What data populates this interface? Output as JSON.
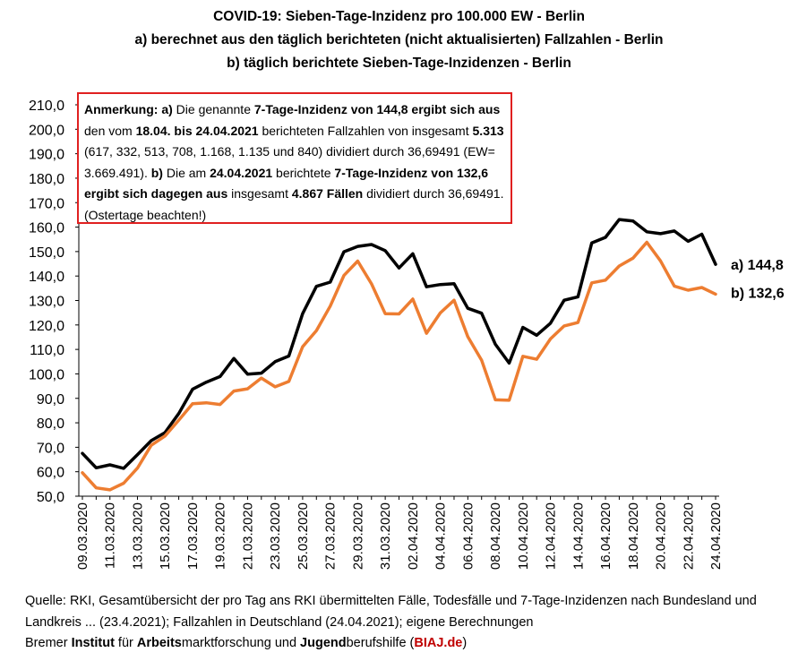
{
  "titles": {
    "line1": "COVID-19: Sieben-Tage-Inzidenz pro 100.000 EW - Berlin",
    "line2": "a) berechnet aus den täglich berichteten (nicht aktualisierten) Fallzahlen - Berlin",
    "line3": "b) täglich berichtete Sieben-Tage-Inzidenzen - Berlin"
  },
  "note": {
    "p1": "Anmerkung:  a)",
    "p2": " Die genannte ",
    "p3": "7-Tage-Inzidenz von 144,8 ergibt sich aus",
    "p4": " den vom ",
    "p5": "18.04. bis 24.04.2021",
    "p6": " berichteten Fallzahlen von insgesamt ",
    "p7": "5.313",
    "p8": " (617, 332, 513, 708, 1.168, 1.135 und 840) dividiert durch 36,69491 (EW= 3.669.491). ",
    "p9": "b)",
    "p10": " Die am ",
    "p11": "24.04.2021",
    "p12": " berichtete ",
    "p13": "7-Tage-Inzidenz von 132,6 ergibt sich dagegen aus",
    "p14": " insgesamt ",
    "p15": "4.867 Fällen",
    "p16": " dividiert durch 36,69491. (Ostertage beachten!)"
  },
  "footer": {
    "line1": "Quelle: RKI, Gesamtübersicht der pro Tag ans RKI übermittelten Fälle, Todesfälle und 7-Tage-Inzidenzen nach Bundesland und",
    "line2": "Landkreis ... (23.4.2021); Fallzahlen in Deutschland (24.04.2021); eigene Berechnungen",
    "l3a": "Bremer ",
    "l3b": "Institut",
    "l3c": " für ",
    "l3d": "Arbeits",
    "l3e": "marktforschung und ",
    "l3f": "Jugend",
    "l3g": "berufshilfe (",
    "l3h": "BIAJ.de",
    "l3i": ")"
  },
  "colors": {
    "series_a": "#000000",
    "series_b": "#ed7d31",
    "note_border": "#e02020",
    "footer_link": "#c00000"
  },
  "chart_data": {
    "type": "line",
    "ylim": [
      50,
      210
    ],
    "yticks": [
      "50,0",
      "60,0",
      "70,0",
      "80,0",
      "90,0",
      "100,0",
      "110,0",
      "120,0",
      "130,0",
      "140,0",
      "150,0",
      "160,0",
      "170,0",
      "180,0",
      "190,0",
      "200,0",
      "210,0"
    ],
    "grid": false,
    "x": [
      "09.03.2020",
      "10.03.2020",
      "11.03.2020",
      "12.03.2020",
      "13.03.2020",
      "14.03.2020",
      "15.03.2020",
      "16.03.2020",
      "17.03.2020",
      "18.03.2020",
      "19.03.2020",
      "20.03.2020",
      "21.03.2020",
      "22.03.2020",
      "23.03.2020",
      "24.03.2020",
      "25.03.2020",
      "26.03.2020",
      "27.03.2020",
      "28.03.2020",
      "29.03.2020",
      "30.03.2020",
      "31.03.2020",
      "01.04.2020",
      "02.04.2020",
      "03.04.2020",
      "04.04.2020",
      "05.04.2020",
      "06.04.2020",
      "07.04.2020",
      "08.04.2020",
      "09.04.2020",
      "10.04.2020",
      "11.04.2020",
      "12.04.2020",
      "13.04.2020",
      "14.04.2020",
      "15.04.2020",
      "16.04.2020",
      "17.04.2020",
      "18.04.2020",
      "19.04.2020",
      "20.04.2020",
      "21.04.2020",
      "22.04.2020",
      "23.04.2020",
      "24.04.2020"
    ],
    "xtick_labels": [
      "09.03.2020",
      "11.03.2020",
      "13.03.2020",
      "15.03.2020",
      "17.03.2020",
      "19.03.2020",
      "21.03.2020",
      "23.03.2020",
      "25.03.2020",
      "27.03.2020",
      "29.03.2020",
      "31.03.2020",
      "02.04.2020",
      "04.04.2020",
      "06.04.2020",
      "08.04.2020",
      "10.04.2020",
      "12.04.2020",
      "14.04.2020",
      "16.04.2020",
      "18.04.2020",
      "20.04.2020",
      "22.04.2020",
      "24.04.2020"
    ],
    "series": [
      {
        "name": "a)",
        "end_label": "a) 144,8",
        "color": "#000000",
        "values": [
          67.5,
          61.6,
          62.8,
          61.4,
          67.0,
          72.7,
          76.0,
          83.8,
          93.7,
          96.6,
          98.9,
          106.3,
          99.9,
          100.3,
          105.0,
          107.3,
          124.6,
          135.8,
          137.5,
          149.9,
          152.1,
          152.9,
          150.4,
          143.3,
          149.1,
          135.6,
          136.5,
          136.9,
          126.8,
          124.8,
          112.1,
          104.4,
          119.0,
          115.8,
          120.7,
          130.1,
          131.5,
          153.5,
          155.8,
          163.1,
          162.5,
          158.1,
          157.3,
          158.4,
          154.2,
          157.1,
          144.8
        ]
      },
      {
        "name": "b)",
        "end_label": "b) 132,6",
        "color": "#ed7d31",
        "values": [
          59.6,
          53.4,
          52.6,
          55.3,
          61.5,
          70.8,
          74.6,
          81.1,
          87.8,
          88.2,
          87.5,
          93.0,
          93.9,
          98.3,
          94.7,
          96.9,
          111.1,
          117.7,
          127.7,
          140.2,
          146.1,
          136.8,
          124.6,
          124.5,
          130.6,
          116.6,
          124.9,
          130.1,
          115.2,
          105.6,
          89.4,
          89.2,
          107.2,
          106.0,
          114.3,
          119.6,
          121.0,
          137.2,
          138.3,
          144.1,
          147.3,
          153.8,
          146.2,
          135.9,
          134.2,
          135.3,
          132.6
        ]
      }
    ]
  }
}
